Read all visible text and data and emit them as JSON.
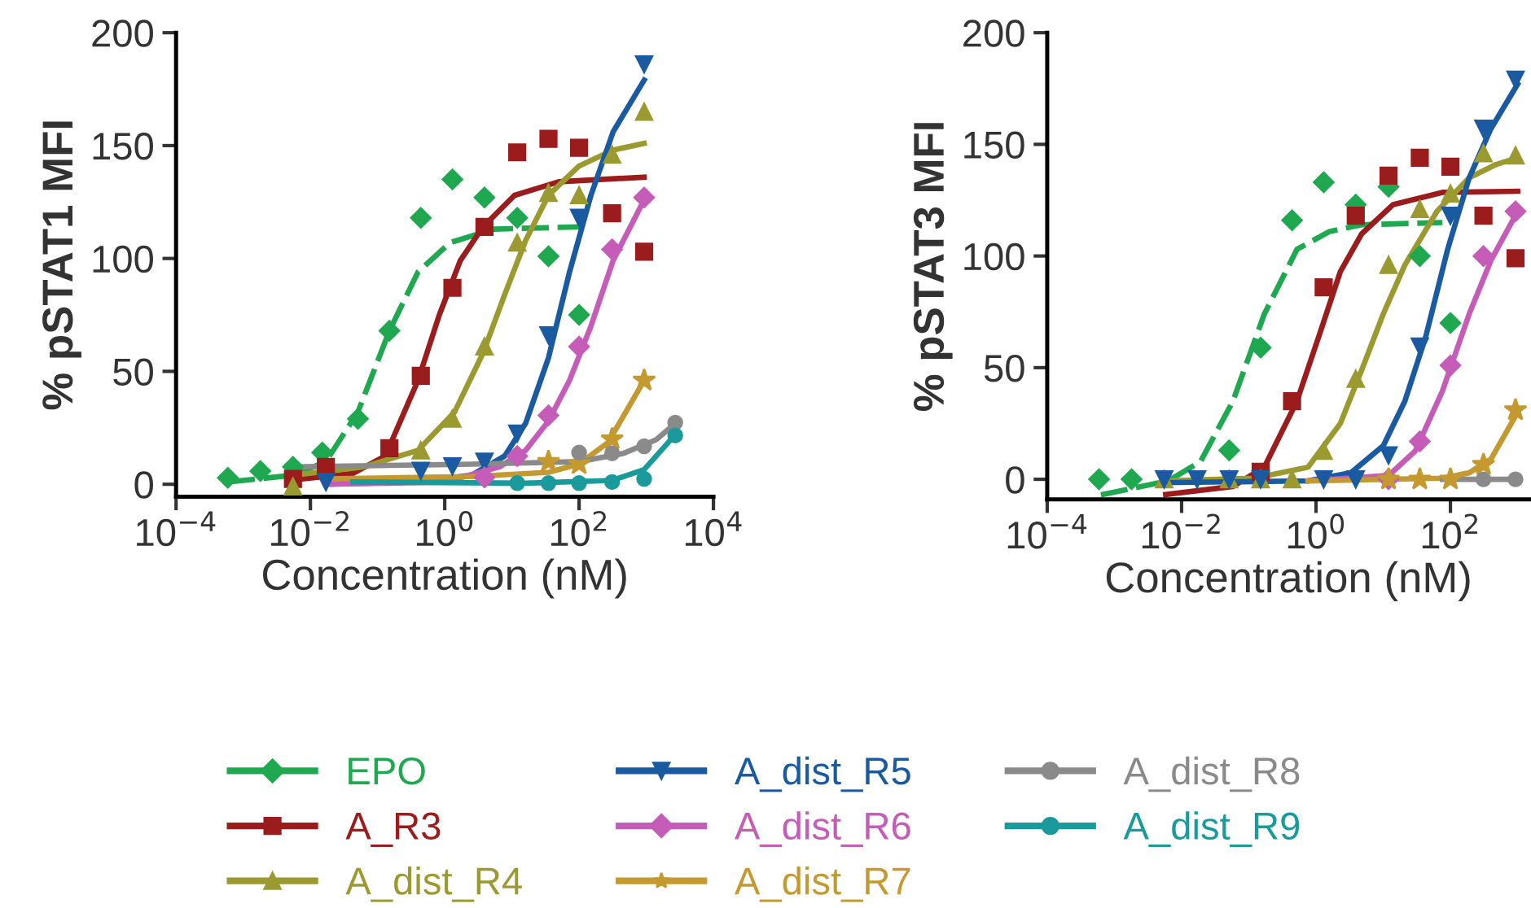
{
  "chart_data": [
    {
      "type": "scatter",
      "ylabel": "% pSTAT1 MFI",
      "xlabel": "Concentration (nM)",
      "log": "x",
      "xlim": [
        0.0001,
        10000
      ],
      "xticks": [
        {
          "value": 0.0001,
          "label": "10$^{−4}$"
        },
        {
          "value": 0.01,
          "label": "10$^{−2}$"
        },
        {
          "value": 1,
          "label": "10$^{0}$"
        },
        {
          "value": 100,
          "label": "10$^{2}$"
        },
        {
          "value": 10000,
          "label": "10$^{4}$"
        }
      ],
      "ylim": [
        -5.5,
        200
      ],
      "yticks": [
        0,
        50,
        100,
        150,
        200
      ],
      "grid": false,
      "legend": "bottom",
      "series": [
        {
          "name": "EPO",
          "color": "#1fa84f",
          "marker": "diamond",
          "x": [
            0.00059,
            0.0018,
            0.0055,
            0.015,
            0.051,
            0.15,
            0.44,
            1.3,
            3.9,
            12,
            35,
            100
          ],
          "values": [
            2.9,
            5.8,
            7.7,
            14,
            29,
            68,
            118,
            135,
            127,
            118,
            101,
            75
          ]
        },
        {
          "type": "line",
          "color": "#1fa84f",
          "line_style": "dashed",
          "x": [
            0.00059,
            0.0055,
            0.017,
            0.051,
            0.15,
            0.4,
            1.2,
            5.4,
            100
          ],
          "values": [
            1,
            4,
            10,
            32,
            68,
            94,
            107,
            113,
            114
          ]
        },
        {
          "name": "A_R3",
          "color": "#9b1c1c",
          "marker": "square",
          "x": [
            0.0055,
            0.017,
            0.15,
            0.44,
            1.3,
            3.9,
            12,
            35,
            100,
            310,
            930
          ],
          "values": [
            2.4,
            7.7,
            16,
            48,
            87,
            114,
            147,
            153,
            149,
            120,
            103
          ]
        },
        {
          "type": "line",
          "color": "#9b1c1c",
          "x": [
            0.0046,
            0.043,
            0.13,
            0.4,
            0.83,
            1.7,
            3.7,
            11,
            50,
            930
          ],
          "values": [
            1.7,
            4.8,
            12.5,
            46,
            75,
            99,
            114,
            128,
            134,
            136
          ]
        },
        {
          "name": "A_dist_R4",
          "color": "#9a9a30",
          "marker": "triangle",
          "x": [
            0.0055,
            0.44,
            1.3,
            3.9,
            12,
            35,
            100,
            310,
            930
          ],
          "values": [
            -1,
            15,
            29,
            61,
            107,
            129,
            128,
            146,
            165
          ]
        },
        {
          "type": "line",
          "color": "#9a9a30",
          "x": [
            0.0055,
            0.062,
            0.4,
            1.4,
            3.7,
            7.8,
            16,
            35,
            100,
            320,
            930
          ],
          "values": [
            4,
            7.7,
            15,
            32,
            58,
            84,
            108,
            128,
            141,
            148,
            151
          ]
        },
        {
          "name": "A_dist_R5",
          "color": "#1a5aa0",
          "marker": "triangle_down",
          "x": [
            0.017,
            0.44,
            1.3,
            3.9,
            12,
            35,
            100,
            930
          ],
          "values": [
            1,
            6,
            8,
            10,
            22.5,
            66,
            118,
            186
          ]
        },
        {
          "type": "line",
          "color": "#1a5aa0",
          "x": [
            0.017,
            0.4,
            2.5,
            7.8,
            16,
            35,
            72,
            150,
            320,
            930
          ],
          "values": [
            0,
            1,
            4,
            12.5,
            27,
            56,
            94,
            128,
            156,
            179
          ]
        },
        {
          "name": "A_dist_R6",
          "color": "#c45cb8",
          "marker": "diamond",
          "x": [
            3.9,
            12,
            35,
            100,
            310,
            930
          ],
          "values": [
            3,
            12.5,
            30.5,
            61,
            104,
            127
          ]
        },
        {
          "type": "line",
          "color": "#c45cb8",
          "x": [
            0.017,
            1,
            6.5,
            16,
            35,
            72,
            150,
            320,
            930
          ],
          "values": [
            0,
            1,
            7.7,
            15,
            28,
            46,
            70,
            99,
            126
          ]
        },
        {
          "name": "A_dist_R7",
          "color": "#c49a30",
          "marker": "star",
          "x": [
            35,
            100,
            310,
            930
          ],
          "values": [
            10,
            9,
            20,
            46
          ]
        },
        {
          "type": "line",
          "color": "#c49a30",
          "x": [
            0.017,
            2.5,
            35,
            100,
            270,
            930
          ],
          "values": [
            2.4,
            3.4,
            5.3,
            9,
            18.5,
            46
          ]
        },
        {
          "name": "A_dist_R8",
          "color": "#8a8a8a",
          "marker": "circle",
          "x": [
            100,
            310,
            930,
            2700
          ],
          "values": [
            14,
            13.7,
            16.8,
            27.3
          ]
        },
        {
          "type": "line",
          "color": "#8a8a8a",
          "x": [
            0.0055,
            2.5,
            100,
            460,
            1400,
            2700
          ],
          "values": [
            7.7,
            8.9,
            10,
            13.7,
            19.7,
            26.9
          ]
        },
        {
          "name": "A_dist_R9",
          "color": "#1a9a9a",
          "marker": "circle",
          "x": [
            12,
            35,
            100,
            310,
            930,
            2700
          ],
          "values": [
            0.5,
            0.5,
            0.5,
            1,
            2.4,
            21.6
          ]
        },
        {
          "type": "line",
          "color": "#1a9a9a",
          "x": [
            0.043,
            16,
            310,
            930,
            2700
          ],
          "values": [
            1,
            0.5,
            1.7,
            6.5,
            22
          ]
        }
      ]
    },
    {
      "type": "scatter",
      "ylabel": "% pSTAT3 MFI",
      "xlabel": "Concentration (nM)",
      "log": "x",
      "xlim": [
        0.0001,
        1500
      ],
      "xticks": [
        {
          "value": 0.0001,
          "label": "10$^{−4}$"
        },
        {
          "value": 0.01,
          "label": "10$^{−2}$"
        },
        {
          "value": 1,
          "label": "10$^{0}$"
        },
        {
          "value": 100,
          "label": "10$^{2}$"
        }
      ],
      "ylim": [
        -9,
        200
      ],
      "yticks": [
        0,
        50,
        100,
        150,
        200
      ],
      "grid": false,
      "series": [
        {
          "color": "#1fa84f",
          "marker": "diamond",
          "x": [
            0.00059,
            0.0018,
            0.051,
            0.15,
            0.44,
            1.3,
            3.9,
            12,
            35,
            100
          ],
          "values": [
            0,
            0,
            13,
            59,
            116,
            133,
            123,
            131,
            100,
            70
          ]
        },
        {
          "type": "line",
          "color": "#1fa84f",
          "line_style": "dashed",
          "x": [
            0.00063,
            0.0063,
            0.019,
            0.058,
            0.17,
            0.52,
            1.6,
            4.8,
            76
          ],
          "values": [
            -7,
            -0.7,
            7.8,
            35,
            74,
            103,
            111,
            114,
            115
          ]
        },
        {
          "color": "#9b1c1c",
          "marker": "square",
          "x": [
            0.15,
            0.44,
            1.3,
            3.9,
            12,
            35,
            100,
            310,
            930
          ],
          "values": [
            3.4,
            35,
            86,
            118,
            136,
            144,
            140,
            118,
            99
          ]
        },
        {
          "type": "line",
          "color": "#9b1c1c",
          "x": [
            0.0058,
            0.058,
            0.17,
            0.52,
            1.1,
            2.3,
            4.8,
            14,
            76,
            1000
          ],
          "values": [
            -6.8,
            -3.2,
            5.4,
            35,
            64,
            93,
            110,
            123,
            128.5,
            129
          ]
        },
        {
          "color": "#9a9a30",
          "marker": "triangle",
          "x": [
            0.0055,
            0.051,
            0.15,
            0.44,
            1.3,
            3.9,
            12,
            35,
            100,
            310,
            930
          ],
          "values": [
            0,
            0,
            0,
            0,
            12.7,
            45,
            96,
            121,
            128,
            146,
            145
          ]
        },
        {
          "type": "line",
          "color": "#9a9a30",
          "x": [
            0.0058,
            0.12,
            0.76,
            2.3,
            4.8,
            10,
            21,
            63,
            190,
            480,
            1000
          ],
          "values": [
            -0.7,
            0.5,
            5.4,
            25,
            49,
            74,
            96,
            120,
            135,
            141,
            144
          ]
        },
        {
          "color": "#1a5aa0",
          "marker": "triangle_down",
          "x": [
            0.0055,
            0.017,
            0.051,
            0.15,
            1.3,
            3.9,
            12,
            35,
            100,
            310,
            930
          ],
          "values": [
            0,
            0,
            0,
            0,
            0,
            0,
            10.7,
            59.5,
            118,
            157,
            179
          ]
        },
        {
          "type": "line",
          "color": "#1a5aa0",
          "x": [
            0.0058,
            0.76,
            3.3,
            10,
            21,
            43,
            91,
            190,
            400,
            1000
          ],
          "values": [
            -1.5,
            -0.7,
            2.9,
            15,
            35,
            64,
            103,
            135,
            157,
            177
          ]
        },
        {
          "color": "#c45cb8",
          "marker": "diamond",
          "x": [
            12,
            35,
            100,
            310,
            930
          ],
          "values": [
            0,
            17,
            51,
            100,
            120
          ]
        },
        {
          "type": "line",
          "color": "#c45cb8",
          "x": [
            0.76,
            12,
            30,
            76,
            190,
            400,
            1000
          ],
          "values": [
            -0.7,
            1.7,
            12.7,
            39.5,
            74,
            98,
            120
          ]
        },
        {
          "color": "#c49a30",
          "marker": "star",
          "x": [
            12,
            35,
            100,
            310,
            930
          ],
          "values": [
            0,
            0,
            0,
            6.6,
            31
          ]
        },
        {
          "type": "line",
          "color": "#c49a30",
          "x": [
            0.76,
            76,
            190,
            400,
            1000
          ],
          "values": [
            -0.7,
            0.5,
            2.9,
            9,
            30
          ]
        },
        {
          "color": "#8a8a8a",
          "marker": "circle",
          "x": [
            310,
            930
          ],
          "values": [
            0,
            0
          ]
        },
        {
          "type": "line",
          "color": "#8a8a8a",
          "x": [
            76,
            1000
          ],
          "values": [
            0,
            0
          ]
        }
      ]
    }
  ]
}
